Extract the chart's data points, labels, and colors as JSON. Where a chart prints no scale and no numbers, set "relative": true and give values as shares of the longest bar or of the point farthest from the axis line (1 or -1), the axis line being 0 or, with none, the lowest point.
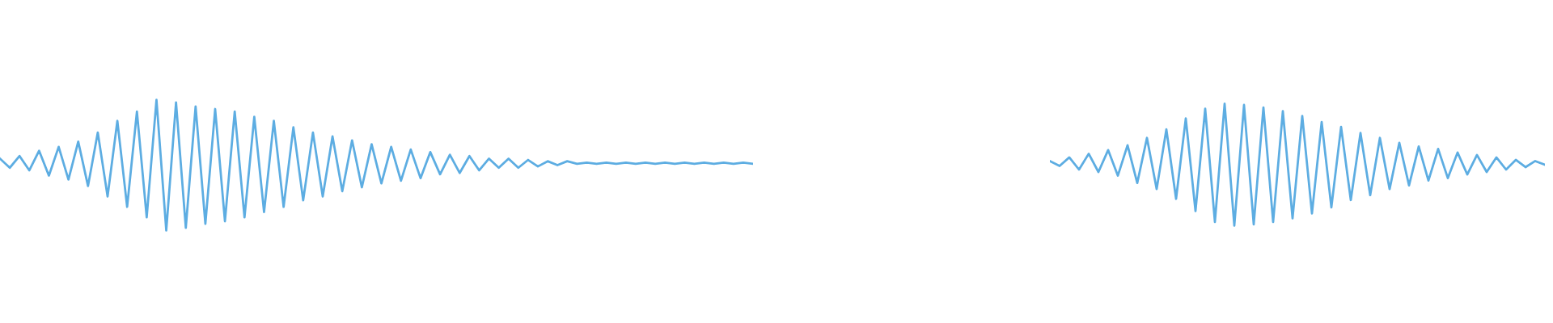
{
  "chart_data": [
    {
      "type": "line",
      "relative": true,
      "line_style": "solid",
      "categories": [
        null,
        null,
        null,
        null,
        null,
        null,
        null,
        null,
        null,
        null,
        null,
        null,
        null,
        null,
        null,
        null,
        null,
        null,
        null,
        null,
        null,
        null,
        null,
        null,
        null,
        null,
        null,
        null,
        null,
        null,
        null,
        null,
        null,
        null,
        null,
        null,
        null,
        null,
        null,
        null,
        null,
        null,
        null,
        null,
        null,
        null,
        null,
        null,
        null,
        null,
        null,
        null,
        null,
        null,
        null,
        null,
        null,
        null,
        null,
        null,
        null,
        null,
        null,
        null,
        null,
        null,
        null,
        null,
        null,
        null,
        null,
        null,
        null,
        null,
        null,
        null,
        null,
        null
      ],
      "series": [
        {
          "color": "#5dade2",
          "values": [
            0.55,
            0.48,
            0.57,
            0.46,
            0.61,
            0.42,
            0.64,
            0.39,
            0.68,
            0.34,
            0.75,
            0.26,
            0.84,
            0.18,
            0.91,
            0.1,
            1.0,
            0,
            0.98,
            0.02,
            0.95,
            0.05,
            0.93,
            0.07,
            0.91,
            0.1,
            0.87,
            0.14,
            0.84,
            0.18,
            0.79,
            0.23,
            0.75,
            0.26,
            0.72,
            0.3,
            0.69,
            0.33,
            0.66,
            0.36,
            0.64,
            0.38,
            0.62,
            0.4,
            0.6,
            0.43,
            0.58,
            0.44,
            0.57,
            0.46,
            0.55,
            0.48,
            0.55,
            0.48,
            0.54,
            0.49,
            0.53,
            0.5,
            0.53,
            0.51,
            0.52,
            0.51,
            0.52,
            0.51,
            0.52,
            0.51,
            0.52,
            0.51,
            0.52,
            0.51,
            0.52,
            0.51,
            0.52,
            0.51,
            0.52,
            0.51,
            0.52,
            0.51
          ]
        }
      ]
    },
    {
      "type": "line",
      "relative": true,
      "line_style": "solid",
      "categories": [
        null,
        null,
        null,
        null,
        null,
        null,
        null,
        null,
        null,
        null,
        null,
        null,
        null,
        null,
        null,
        null,
        null,
        null,
        null,
        null,
        null,
        null,
        null,
        null,
        null,
        null,
        null,
        null,
        null,
        null,
        null,
        null,
        null,
        null,
        null,
        null,
        null,
        null,
        null,
        null,
        null,
        null,
        null,
        null,
        null,
        null,
        null,
        null,
        null,
        null,
        null,
        null
      ],
      "series": [
        {
          "color": "#5dade2",
          "values": [
            0.53,
            0.49,
            0.56,
            0.46,
            0.59,
            0.44,
            0.62,
            0.41,
            0.66,
            0.35,
            0.72,
            0.3,
            0.79,
            0.22,
            0.88,
            0.12,
            0.96,
            0.03,
            1.0,
            0,
            0.99,
            0.01,
            0.97,
            0.03,
            0.94,
            0.06,
            0.9,
            0.1,
            0.85,
            0.15,
            0.81,
            0.21,
            0.76,
            0.25,
            0.72,
            0.3,
            0.68,
            0.33,
            0.65,
            0.37,
            0.63,
            0.39,
            0.6,
            0.42,
            0.58,
            0.44,
            0.56,
            0.46,
            0.54,
            0.48,
            0.53,
            0.5
          ]
        }
      ]
    }
  ]
}
